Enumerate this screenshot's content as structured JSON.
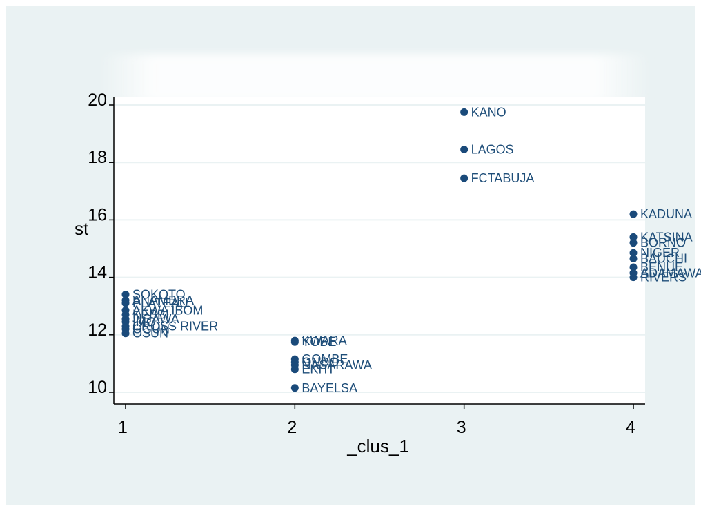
{
  "chart_data": {
    "type": "scatter",
    "title": "",
    "xlabel": "_clus_1",
    "ylabel": "st",
    "xlim": [
      1,
      4
    ],
    "ylim": [
      10,
      20
    ],
    "xticks": [
      "1",
      "2",
      "3",
      "4"
    ],
    "yticks": [
      "10",
      "12",
      "14",
      "16",
      "18",
      "20"
    ],
    "grid": true,
    "marker_color": "#1a4a7a",
    "label_color": "#1f4e79",
    "points": [
      {
        "label": "KANO",
        "x": 3,
        "y": 19.75
      },
      {
        "label": "LAGOS",
        "x": 3,
        "y": 18.45
      },
      {
        "label": "FCTABUJA",
        "x": 3,
        "y": 17.45
      },
      {
        "label": "KADUNA",
        "x": 4,
        "y": 16.2
      },
      {
        "label": "KATSINA",
        "x": 4,
        "y": 15.4
      },
      {
        "label": "BORNO",
        "x": 4,
        "y": 15.2
      },
      {
        "label": "NIGER",
        "x": 4,
        "y": 14.85
      },
      {
        "label": "BAUCHI",
        "x": 4,
        "y": 14.65
      },
      {
        "label": "BENUE",
        "x": 4,
        "y": 14.35
      },
      {
        "label": "ADAMAWA",
        "x": 4,
        "y": 14.15
      },
      {
        "label": "RIVERS",
        "x": 4,
        "y": 14.0
      },
      {
        "label": "SOKOTO",
        "x": 1,
        "y": 13.4
      },
      {
        "label": "ANAMBRA",
        "x": 1,
        "y": 13.2
      },
      {
        "label": "PLATEAU",
        "x": 1,
        "y": 13.1
      },
      {
        "label": "AKWA IBOM",
        "x": 1,
        "y": 12.85
      },
      {
        "label": "KEBBI",
        "x": 1,
        "y": 12.7
      },
      {
        "label": "JIGAWA",
        "x": 1,
        "y": 12.55
      },
      {
        "label": "IMO",
        "x": 1,
        "y": 12.45
      },
      {
        "label": "CROSS RIVER",
        "x": 1,
        "y": 12.3
      },
      {
        "label": "OGUN",
        "x": 1,
        "y": 12.2
      },
      {
        "label": "OSUN",
        "x": 1,
        "y": 12.05
      },
      {
        "label": "KWARA",
        "x": 2,
        "y": 11.8
      },
      {
        "label": "YOBE",
        "x": 2,
        "y": 11.75
      },
      {
        "label": "GOMBE",
        "x": 2,
        "y": 11.15
      },
      {
        "label": "ONDO",
        "x": 2,
        "y": 11.05
      },
      {
        "label": "NASARAWA",
        "x": 2,
        "y": 10.95
      },
      {
        "label": "EKITI",
        "x": 2,
        "y": 10.8
      },
      {
        "label": "BAYELSA",
        "x": 2,
        "y": 10.15
      }
    ]
  }
}
